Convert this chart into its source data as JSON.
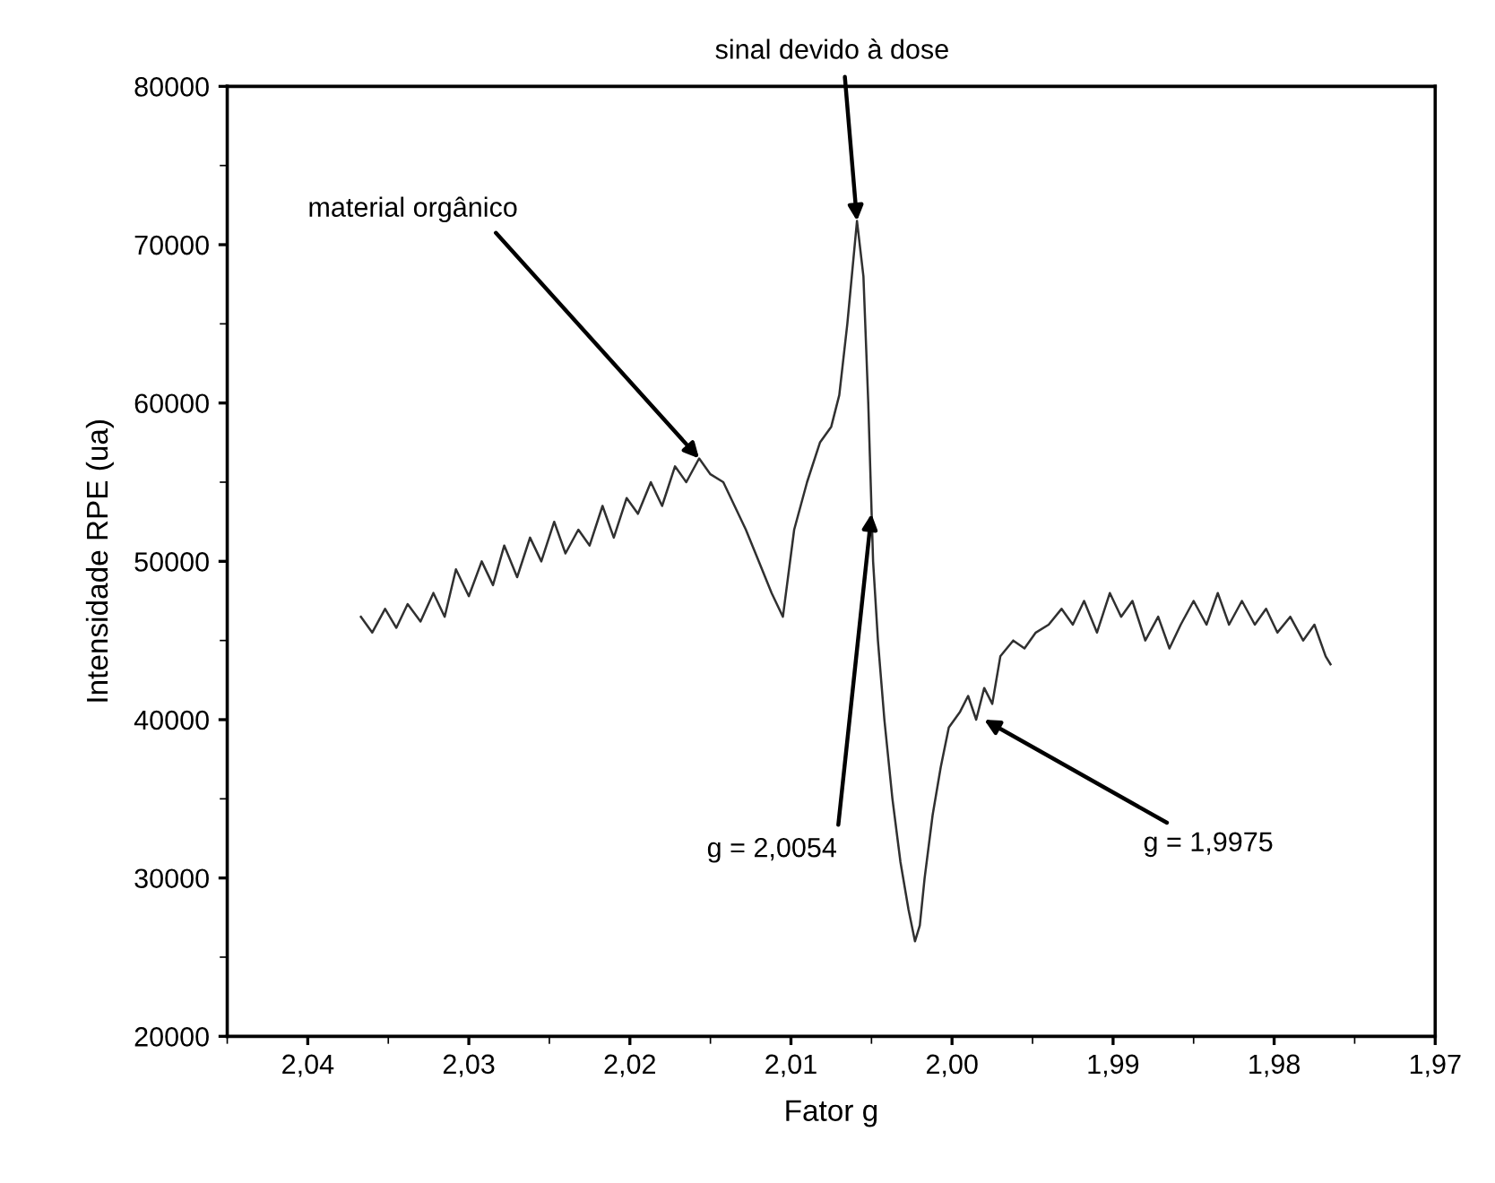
{
  "chart_data": {
    "type": "line",
    "xlabel": "Fator g",
    "ylabel": "Intensidade RPE (ua)",
    "x": [
      2.0367,
      2.036,
      2.0352,
      2.0345,
      2.0338,
      2.033,
      2.0322,
      2.0315,
      2.0308,
      2.03,
      2.0292,
      2.0285,
      2.0278,
      2.027,
      2.0262,
      2.0255,
      2.0247,
      2.024,
      2.0232,
      2.0225,
      2.0217,
      2.021,
      2.0202,
      2.0195,
      2.0187,
      2.018,
      2.0172,
      2.0165,
      2.0157,
      2.015,
      2.0142,
      2.0135,
      2.0128,
      2.012,
      2.0112,
      2.0105,
      2.0098,
      2.009,
      2.0082,
      2.0075,
      2.007,
      2.0065,
      2.0059,
      2.0055,
      2.0052,
      2.0049,
      2.0046,
      2.0042,
      2.0037,
      2.0032,
      2.0027,
      2.0023,
      2.002,
      2.0017,
      2.0012,
      2.0007,
      2.0002,
      1.9995,
      1.999,
      1.9985,
      1.998,
      1.9975,
      1.997,
      1.9962,
      1.9955,
      1.9948,
      1.994,
      1.9932,
      1.9925,
      1.9918,
      1.991,
      1.9902,
      1.9895,
      1.9888,
      1.988,
      1.9872,
      1.9865,
      1.9858,
      1.985,
      1.9842,
      1.9835,
      1.9828,
      1.982,
      1.9812,
      1.9805,
      1.9798,
      1.979,
      1.9782,
      1.9775,
      1.9768,
      1.9765
    ],
    "series": [
      {
        "color": "#303030",
        "values": [
          46500,
          45500,
          47000,
          45800,
          47300,
          46200,
          48000,
          46500,
          49500,
          47800,
          50000,
          48500,
          51000,
          49000,
          51500,
          50000,
          52500,
          50500,
          52000,
          51000,
          53500,
          51500,
          54000,
          53000,
          55000,
          53500,
          56000,
          55000,
          56500,
          55500,
          55000,
          53500,
          52000,
          50000,
          48000,
          46500,
          52000,
          55000,
          57500,
          58500,
          60500,
          65000,
          71500,
          68000,
          60000,
          50000,
          45000,
          40000,
          35000,
          31000,
          28000,
          26000,
          27000,
          30000,
          34000,
          37000,
          39500,
          40500,
          41500,
          40000,
          42000,
          41000,
          44000,
          45000,
          44500,
          45500,
          46000,
          47000,
          46000,
          47500,
          45500,
          48000,
          46500,
          47500,
          45000,
          46500,
          44500,
          46000,
          47500,
          46000,
          48000,
          46000,
          47500,
          46000,
          47000,
          45500,
          46500,
          45000,
          46000,
          44000,
          43500
        ]
      }
    ],
    "xlim": [
      2.045,
      1.97
    ],
    "ylim": [
      20000,
      80000
    ],
    "xticks": [
      {
        "value": 2.04,
        "label": "2,04"
      },
      {
        "value": 2.03,
        "label": "2,03"
      },
      {
        "value": 2.02,
        "label": "2,02"
      },
      {
        "value": 2.01,
        "label": "2,01"
      },
      {
        "value": 2.0,
        "label": "2,00"
      },
      {
        "value": 1.99,
        "label": "1,99"
      },
      {
        "value": 1.98,
        "label": "1,98"
      },
      {
        "value": 1.97,
        "label": "1,97"
      }
    ],
    "yticks": [
      20000,
      30000,
      40000,
      50000,
      60000,
      70000,
      80000
    ],
    "grid": false,
    "legend": false,
    "annotations": [
      {
        "text": "material orgânico",
        "x": 2.0157,
        "y": 56500
      },
      {
        "text": "sinal devido à dose",
        "x": 2.0059,
        "y": 71500
      },
      {
        "text": "g = 2,0054",
        "x": 2.005,
        "y": 53000
      },
      {
        "text": "g = 1,9975",
        "x": 1.998,
        "y": 40000
      }
    ]
  }
}
